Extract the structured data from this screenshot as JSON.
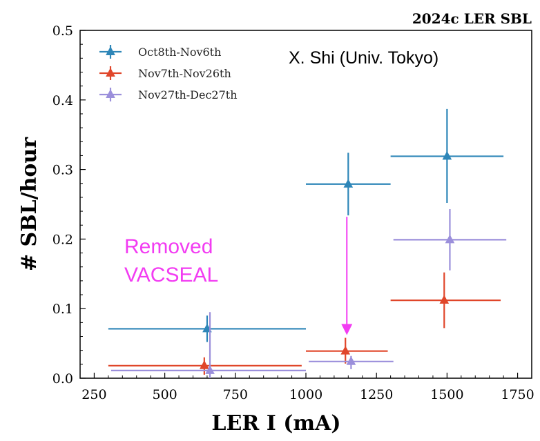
{
  "chart_data": {
    "type": "scatter",
    "corner_title": "2024c LER SBL",
    "xlabel": "LER I (mA)",
    "ylabel": "# SBL/hour",
    "xlim": [
      200,
      1800
    ],
    "ylim": [
      0,
      0.5
    ],
    "xticks": [
      "250",
      "500",
      "750",
      "1000",
      "1250",
      "1500",
      "1750"
    ],
    "yticks": [
      "0.0",
      "0.1",
      "0.2",
      "0.3",
      "0.4",
      "0.5"
    ],
    "series": [
      {
        "name": "Oct8th-Nov6th",
        "color": "#2e86b8",
        "points": [
          {
            "x": 650,
            "y": 0.071,
            "xmin": 300,
            "xmax": 1000,
            "ylo": 0.052,
            "yhi": 0.09
          },
          {
            "x": 1150,
            "y": 0.279,
            "xmin": 1000,
            "xmax": 1300,
            "ylo": 0.234,
            "yhi": 0.324
          },
          {
            "x": 1500,
            "y": 0.319,
            "xmin": 1300,
            "xmax": 1700,
            "ylo": 0.252,
            "yhi": 0.387
          }
        ]
      },
      {
        "name": "Nov7th-Nov26th",
        "color": "#e0462a",
        "points": [
          {
            "x": 640,
            "y": 0.018,
            "xmin": 300,
            "xmax": 985,
            "ylo": 0.005,
            "yhi": 0.03
          },
          {
            "x": 1140,
            "y": 0.039,
            "xmin": 1000,
            "xmax": 1290,
            "ylo": 0.021,
            "yhi": 0.058
          },
          {
            "x": 1490,
            "y": 0.112,
            "xmin": 1300,
            "xmax": 1690,
            "ylo": 0.072,
            "yhi": 0.152
          }
        ]
      },
      {
        "name": "Nov27th-Dec27th",
        "color": "#9b8fdb",
        "points": [
          {
            "x": 660,
            "y": 0.011,
            "xmin": 310,
            "xmax": 1000,
            "ylo": 0.0,
            "yhi": 0.095
          },
          {
            "x": 1160,
            "y": 0.024,
            "xmin": 1010,
            "xmax": 1310,
            "ylo": 0.013,
            "yhi": 0.032
          },
          {
            "x": 1510,
            "y": 0.199,
            "xmin": 1310,
            "xmax": 1710,
            "ylo": 0.155,
            "yhi": 0.243
          }
        ]
      }
    ],
    "annotations": {
      "author": "X. Shi (Univ. Tokyo)",
      "removed_line1": "Removed",
      "removed_line2": "VACSEAL",
      "removed_color": "#f23cf2",
      "arrow": {
        "x": 1145,
        "y_from": 0.232,
        "y_to": 0.062
      }
    },
    "legend_position": "top-left",
    "grid": false
  }
}
